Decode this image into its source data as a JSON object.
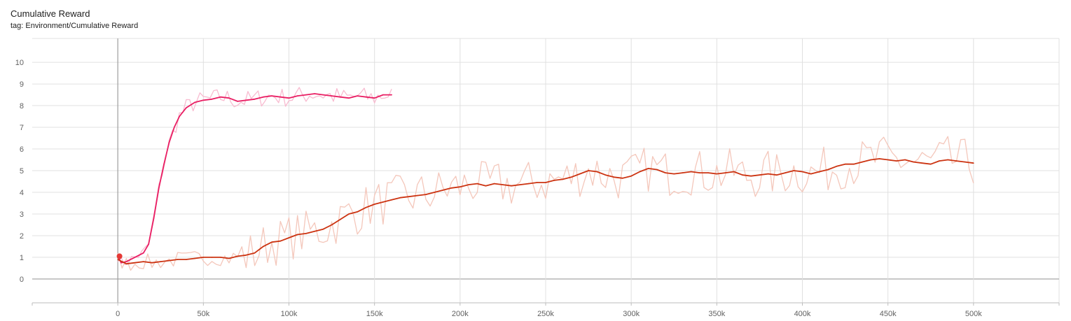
{
  "card": {
    "title": "Cumulative Reward",
    "tag": "tag: Environment/Cumulative Reward"
  },
  "chart_data": {
    "type": "line",
    "title": "Cumulative Reward",
    "subtitle": "tag: Environment/Cumulative Reward",
    "xlabel": "",
    "ylabel": "",
    "xlim": [
      -50000,
      550000
    ],
    "ylim": [
      -1.1,
      11.1
    ],
    "x_ticks": [
      0,
      50000,
      100000,
      150000,
      200000,
      250000,
      300000,
      350000,
      400000,
      450000,
      500000
    ],
    "x_tick_labels": [
      "0",
      "50k",
      "100k",
      "150k",
      "200k",
      "250k",
      "300k",
      "350k",
      "400k",
      "450k",
      "500k"
    ],
    "y_ticks": [
      0,
      1,
      2,
      3,
      4,
      5,
      6,
      7,
      8,
      9,
      10
    ],
    "y_tick_labels": [
      "0",
      "1",
      "2",
      "3",
      "4",
      "5",
      "6",
      "7",
      "8",
      "9",
      "10"
    ],
    "grid": true,
    "series": [
      {
        "color": "#e91e63",
        "raw_color": "#f8bbd0",
        "x": [
          0,
          2000,
          5000,
          10000,
          15000,
          18000,
          21000,
          24000,
          27000,
          30000,
          33000,
          36000,
          40000,
          45000,
          50000,
          55000,
          60000,
          65000,
          70000,
          75000,
          80000,
          85000,
          90000,
          95000,
          100000,
          105000,
          110000,
          115000,
          120000,
          125000,
          130000,
          135000,
          140000,
          145000,
          150000,
          155000,
          160000
        ],
        "values": [
          1.05,
          0.75,
          0.8,
          1.0,
          1.2,
          1.6,
          2.8,
          4.2,
          5.3,
          6.3,
          7.0,
          7.5,
          7.9,
          8.15,
          8.25,
          8.3,
          8.4,
          8.35,
          8.2,
          8.25,
          8.3,
          8.4,
          8.45,
          8.4,
          8.35,
          8.45,
          8.5,
          8.55,
          8.5,
          8.45,
          8.4,
          8.35,
          8.45,
          8.4,
          8.35,
          8.5,
          8.5
        ]
      },
      {
        "color": "#cc3311",
        "raw_color": "#f4c7bb",
        "x": [
          0,
          5000,
          10000,
          15000,
          20000,
          25000,
          30000,
          35000,
          40000,
          45000,
          50000,
          55000,
          60000,
          65000,
          70000,
          75000,
          80000,
          85000,
          90000,
          95000,
          100000,
          105000,
          110000,
          115000,
          120000,
          125000,
          130000,
          135000,
          140000,
          145000,
          150000,
          155000,
          160000,
          165000,
          170000,
          175000,
          180000,
          185000,
          190000,
          195000,
          200000,
          205000,
          210000,
          215000,
          220000,
          225000,
          230000,
          235000,
          240000,
          245000,
          250000,
          255000,
          260000,
          265000,
          270000,
          275000,
          280000,
          285000,
          290000,
          295000,
          300000,
          305000,
          310000,
          315000,
          320000,
          325000,
          330000,
          335000,
          340000,
          345000,
          350000,
          355000,
          360000,
          365000,
          370000,
          375000,
          380000,
          385000,
          390000,
          395000,
          400000,
          405000,
          410000,
          415000,
          420000,
          425000,
          430000,
          435000,
          440000,
          445000,
          450000,
          455000,
          460000,
          465000,
          470000,
          475000,
          480000,
          485000,
          490000,
          495000,
          500000
        ],
        "values": [
          0.9,
          0.7,
          0.75,
          0.8,
          0.75,
          0.8,
          0.85,
          0.9,
          0.9,
          0.95,
          1.0,
          1.0,
          1.0,
          0.95,
          1.05,
          1.1,
          1.2,
          1.5,
          1.7,
          1.75,
          1.9,
          2.05,
          2.1,
          2.2,
          2.3,
          2.5,
          2.75,
          3.0,
          3.1,
          3.3,
          3.45,
          3.55,
          3.65,
          3.75,
          3.8,
          3.85,
          3.9,
          4.0,
          4.1,
          4.2,
          4.25,
          4.35,
          4.4,
          4.3,
          4.4,
          4.35,
          4.3,
          4.35,
          4.4,
          4.45,
          4.45,
          4.55,
          4.6,
          4.7,
          4.85,
          5.0,
          4.95,
          4.8,
          4.7,
          4.65,
          4.75,
          4.95,
          5.1,
          5.05,
          4.9,
          4.85,
          4.9,
          4.95,
          4.9,
          4.9,
          4.85,
          4.9,
          4.95,
          4.8,
          4.75,
          4.8,
          4.85,
          4.8,
          4.9,
          5.0,
          4.95,
          4.85,
          4.95,
          5.05,
          5.2,
          5.3,
          5.3,
          5.4,
          5.5,
          5.55,
          5.5,
          5.45,
          5.5,
          5.4,
          5.35,
          5.3,
          5.45,
          5.5,
          5.45,
          5.4,
          5.35
        ]
      }
    ]
  }
}
